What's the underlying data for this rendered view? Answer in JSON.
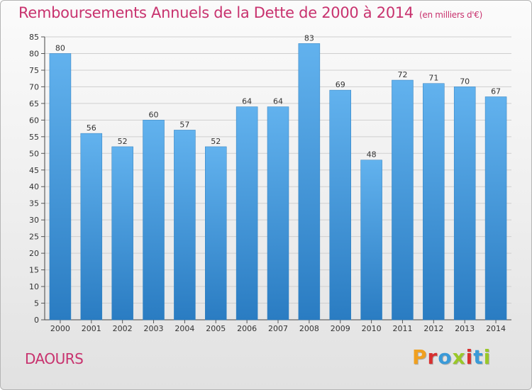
{
  "header": {
    "title": "Remboursements Annuels de la Dette de 2000 à 2014",
    "subtitle": "(en milliers d'€)"
  },
  "footer": {
    "commune": "DAOURS",
    "logo": "Proxiti",
    "logo_colors": [
      "#f0a020",
      "#d83030",
      "#3a9ad8",
      "#9ac828",
      "#d83030",
      "#3a9ad8",
      "#9ac828"
    ]
  },
  "chart_data": {
    "type": "bar",
    "categories": [
      "2000",
      "2001",
      "2002",
      "2003",
      "2004",
      "2005",
      "2006",
      "2007",
      "2008",
      "2009",
      "2010",
      "2011",
      "2012",
      "2013",
      "2014"
    ],
    "values": [
      80,
      56,
      52,
      60,
      57,
      52,
      64,
      64,
      83,
      69,
      48,
      72,
      71,
      70,
      67
    ],
    "ylim": [
      0,
      85
    ],
    "ytick_step": 5,
    "grid": true,
    "bar_color_top": "#62b2ee",
    "bar_color_bottom": "#2a7cc2",
    "title_color": "#c8326e"
  }
}
